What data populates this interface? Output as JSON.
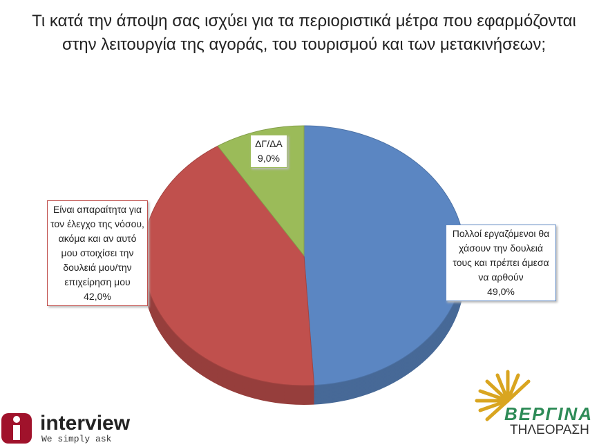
{
  "chart_data": {
    "type": "pie",
    "title": "Τι κατά την άποψη σας ισχύει για τα περιοριστικά μέτρα που εφαρμόζονται στην λειτουργία της αγοράς, του τουρισμού και των μετακινήσεων;",
    "categories": [
      "Πολλοί εργαζόμενοι θα χάσουν την δουλειά τους και πρέπει άμεσα να αρθούν",
      "Είναι απαραίτητα για τον έλεγχο της νόσου, ακόμα και αν αυτό μου στοιχίσει την δουλειά μου/την επιχείρηση μου",
      "ΔΓ/ΔΑ"
    ],
    "values": [
      49,
      42,
      9
    ],
    "value_labels": [
      "49,0%",
      "42,0%",
      "9,0%"
    ],
    "colors": [
      "#5b86c2",
      "#c0504d",
      "#9bbb59"
    ]
  },
  "logos": {
    "interview": "interview",
    "interview_tagline": "We simply ask",
    "vergina": "ΒΕΡΓΙΝΑ",
    "vergina_sub": "ΤΗΛΕΟΡΑΣΗ"
  }
}
